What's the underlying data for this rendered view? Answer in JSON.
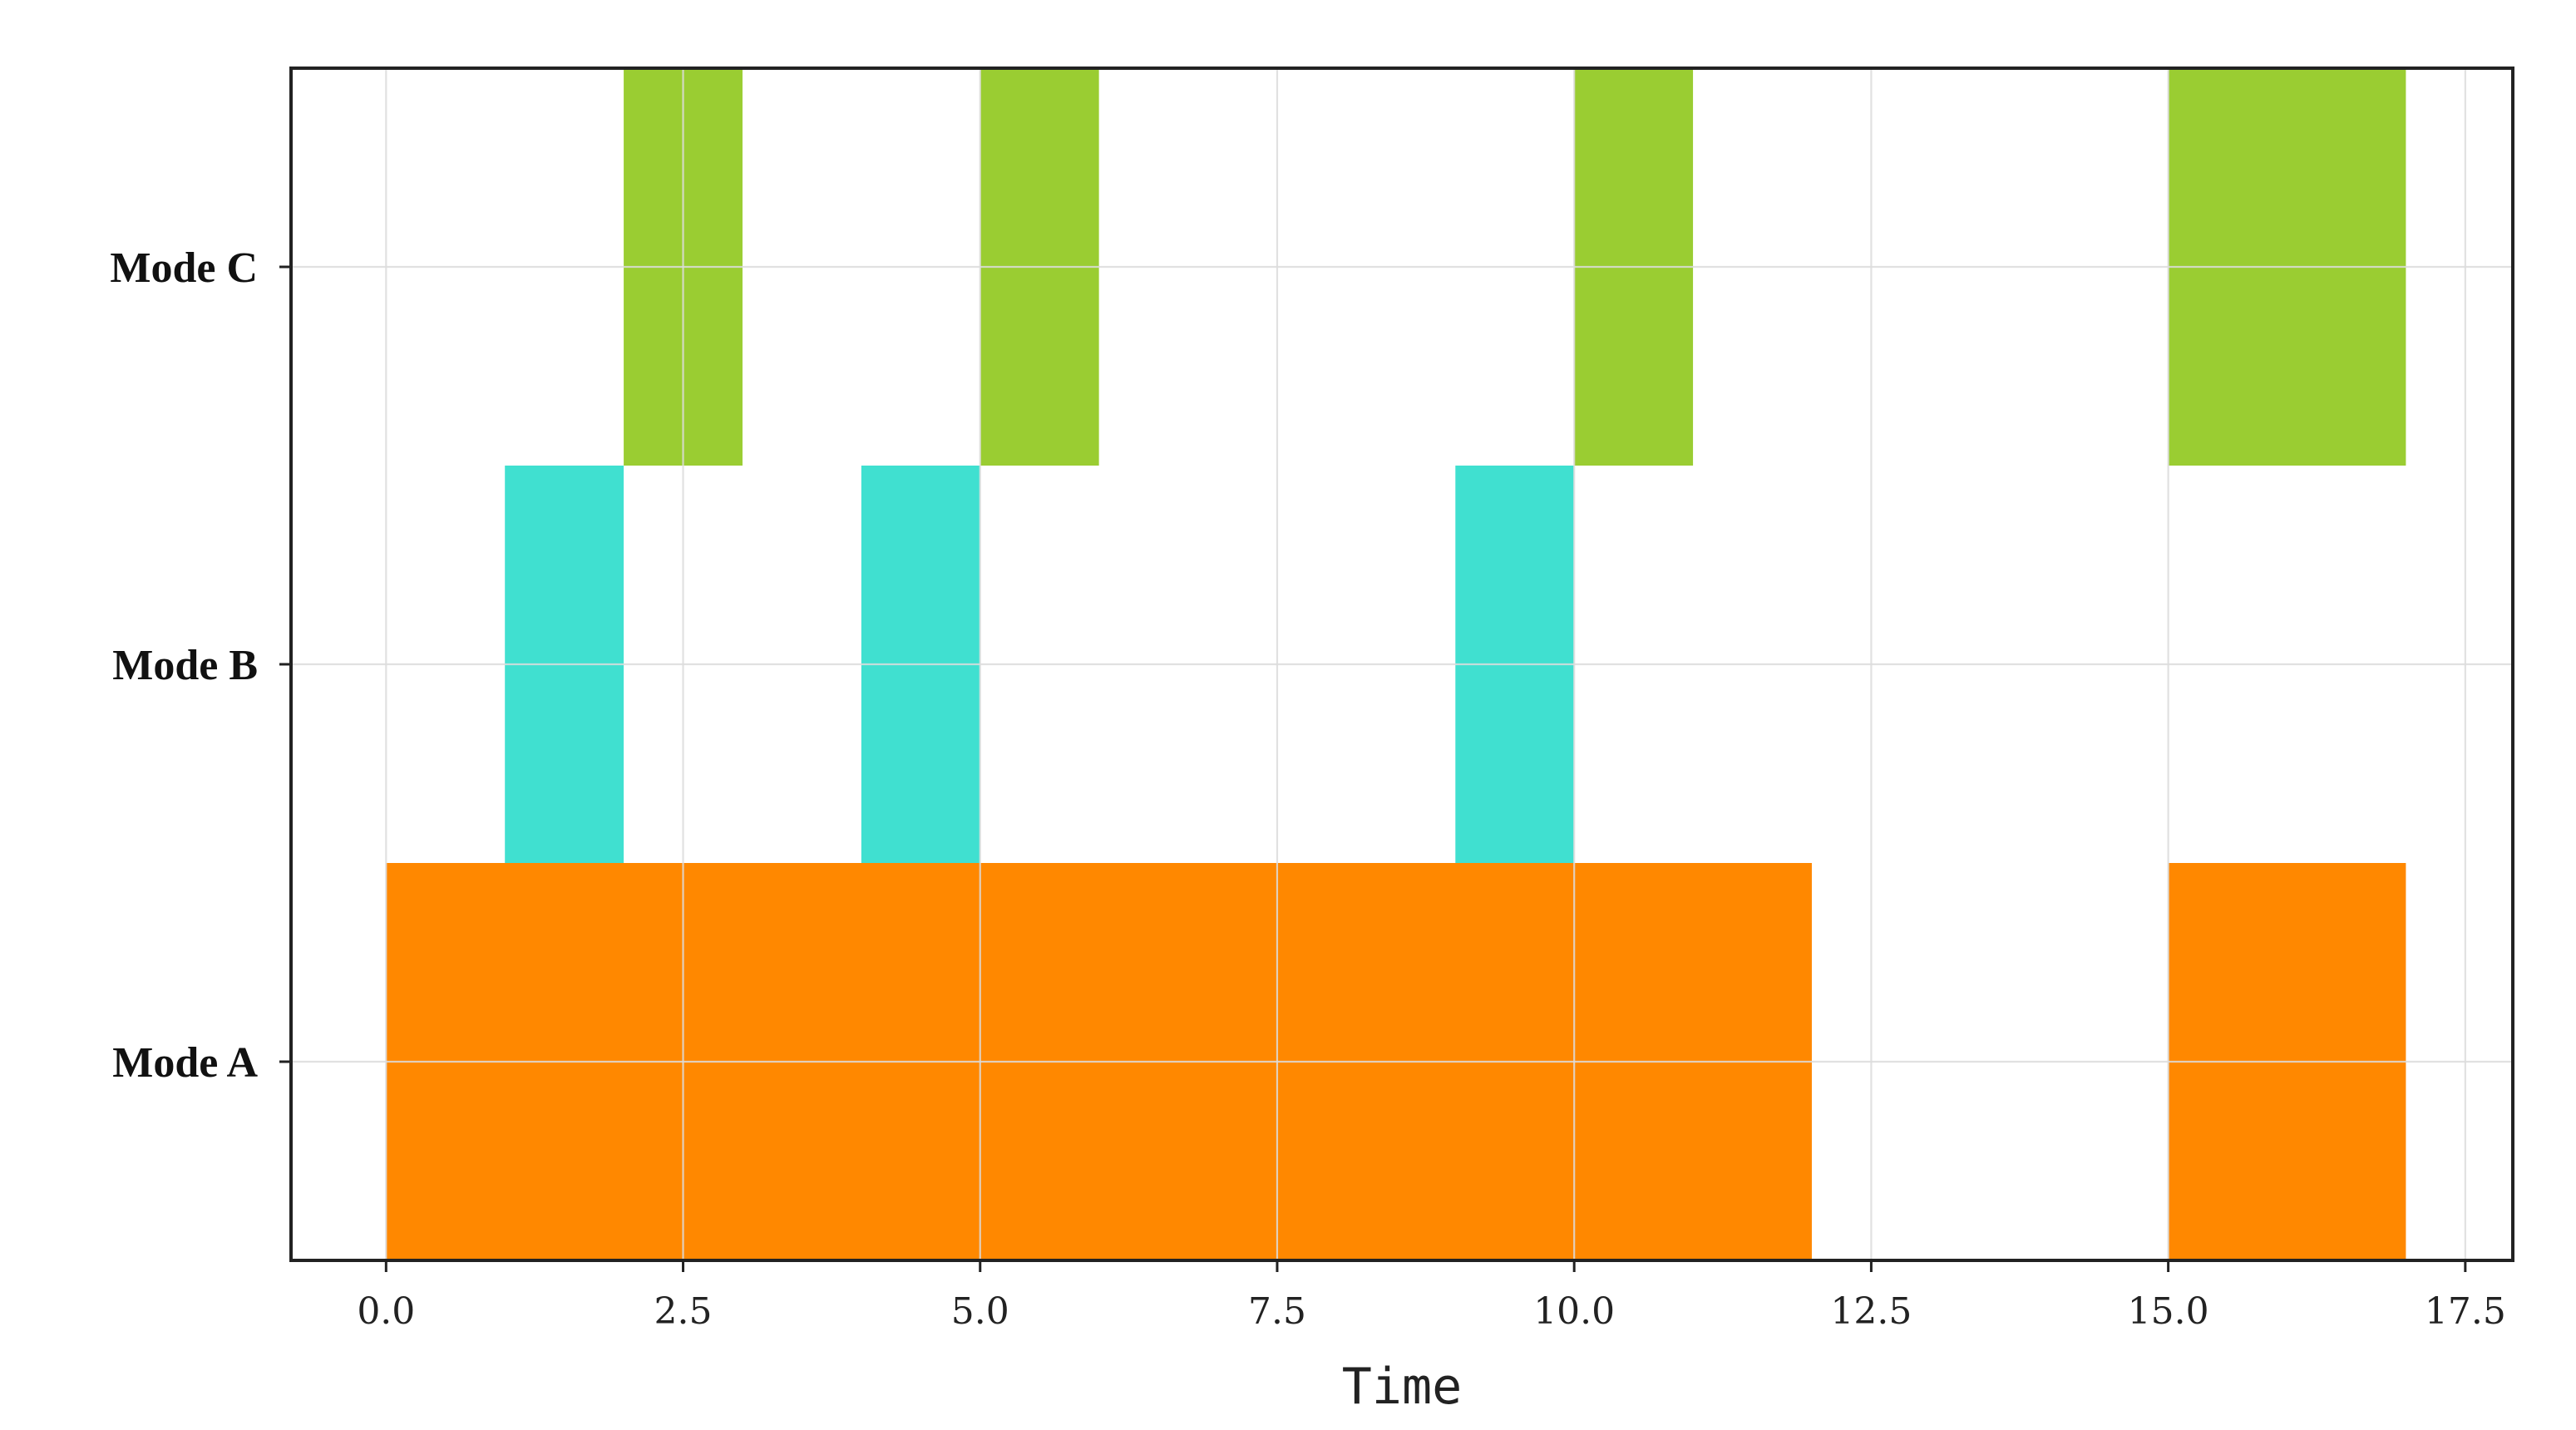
{
  "chart_data": {
    "type": "gantt",
    "title": "",
    "xlabel": "Time",
    "ylabel": "",
    "xlim": [
      -0.8,
      17.9
    ],
    "x_ticks": [
      0.0,
      2.5,
      5.0,
      7.5,
      10.0,
      12.5,
      15.0,
      17.5
    ],
    "x_tick_labels": [
      "0.0",
      "2.5",
      "5.0",
      "7.5",
      "10.0",
      "12.5",
      "15.0",
      "17.5"
    ],
    "categories": [
      "Mode A",
      "Mode B",
      "Mode C"
    ],
    "grid": true,
    "legend": "none",
    "colors": {
      "Mode A": "#ff8800",
      "Mode B": "#40e0d0",
      "Mode C": "#9acd32"
    },
    "series": [
      {
        "category": "Mode A",
        "intervals": [
          {
            "start": 0,
            "end": 12
          },
          {
            "start": 15,
            "end": 17
          }
        ]
      },
      {
        "category": "Mode B",
        "intervals": [
          {
            "start": 1,
            "end": 2
          },
          {
            "start": 4,
            "end": 5
          },
          {
            "start": 9,
            "end": 10
          }
        ]
      },
      {
        "category": "Mode C",
        "intervals": [
          {
            "start": 2,
            "end": 3
          },
          {
            "start": 5,
            "end": 6
          },
          {
            "start": 10,
            "end": 11
          },
          {
            "start": 15,
            "end": 17
          }
        ]
      }
    ]
  }
}
